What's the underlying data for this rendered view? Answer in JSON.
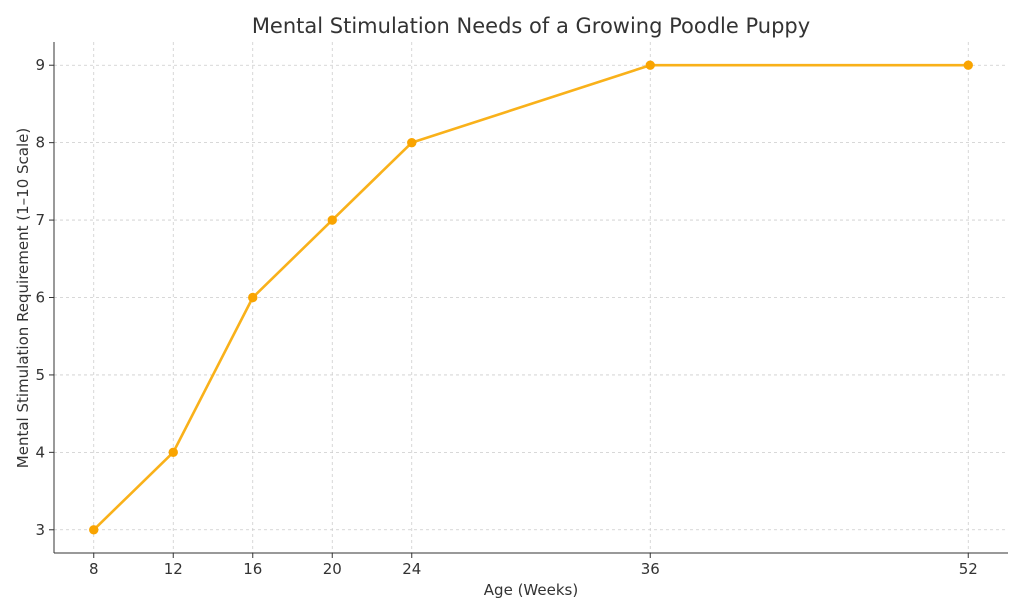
{
  "chart_data": {
    "type": "line",
    "title": "Mental Stimulation Needs of a Growing Poodle Puppy",
    "xlabel": "Age (Weeks)",
    "ylabel": "Mental Stimulation Requirement (1–10 Scale)",
    "x": [
      8,
      12,
      16,
      20,
      24,
      36,
      52
    ],
    "series": [
      {
        "values": [
          3,
          4,
          6,
          7,
          8,
          9,
          9
        ]
      }
    ],
    "xticks": [
      8,
      12,
      16,
      20,
      24,
      36,
      52
    ],
    "yticks": [
      3,
      4,
      5,
      6,
      7,
      8,
      9
    ],
    "xlim": [
      6,
      54
    ],
    "ylim": [
      2.7,
      9.3
    ],
    "grid": true,
    "marker": "circle",
    "colors": {
      "line": "#f9b11a",
      "marker": "#f9a400",
      "grid": "#cccccc",
      "axis": "#333333"
    }
  }
}
